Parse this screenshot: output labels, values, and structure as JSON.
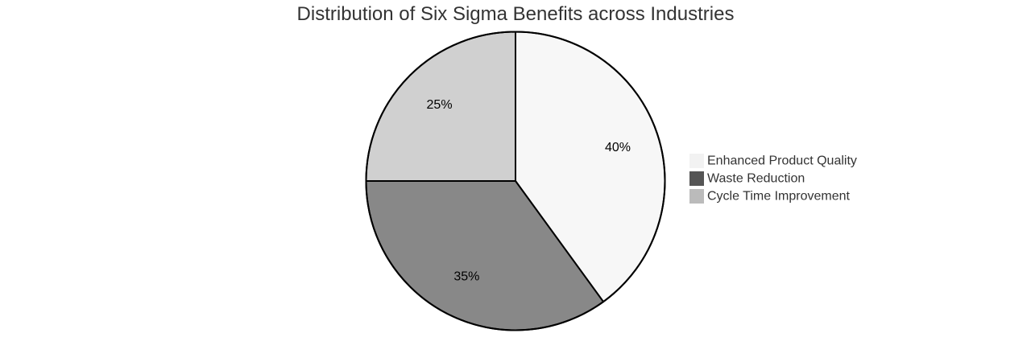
{
  "chart_data": {
    "type": "pie",
    "title": "Distribution of Six Sigma Benefits across Industries",
    "legend_position": "right",
    "slices": [
      {
        "label": "Enhanced Product Quality",
        "value": 40,
        "display": "40%",
        "color": "#f7f7f7",
        "legend_color": "#f2f2f2"
      },
      {
        "label": "Waste Reduction",
        "value": 35,
        "display": "35%",
        "color": "#888888",
        "legend_color": "#555555"
      },
      {
        "label": "Cycle Time Improvement",
        "value": 25,
        "display": "25%",
        "color": "#d0d0d0",
        "legend_color": "#bbbbbb"
      }
    ],
    "stroke_color": "#000000"
  }
}
